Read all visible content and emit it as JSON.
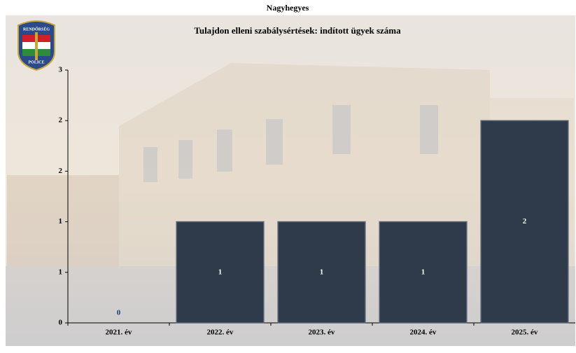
{
  "page_title": "Nagyhegyes",
  "logo": {
    "top": "RENDŐRSÉG",
    "bottom": "POLICE"
  },
  "chart_data": {
    "type": "bar",
    "title": "Tulajdon elleni szabálysértések: indított ügyek száma",
    "categories": [
      "2021. év",
      "2022. év",
      "2023. év",
      "2024. év",
      "2025. év"
    ],
    "values": [
      0,
      1,
      1,
      1,
      2
    ],
    "color": "#2f3b4b",
    "ylim": [
      0,
      2.5
    ],
    "yticks": [
      0,
      {
        "value": 0.5,
        "label": "1"
      },
      1,
      {
        "value": 1.5,
        "label": "2"
      },
      2,
      {
        "value": 2.5,
        "label": "3"
      }
    ],
    "grid": false
  }
}
